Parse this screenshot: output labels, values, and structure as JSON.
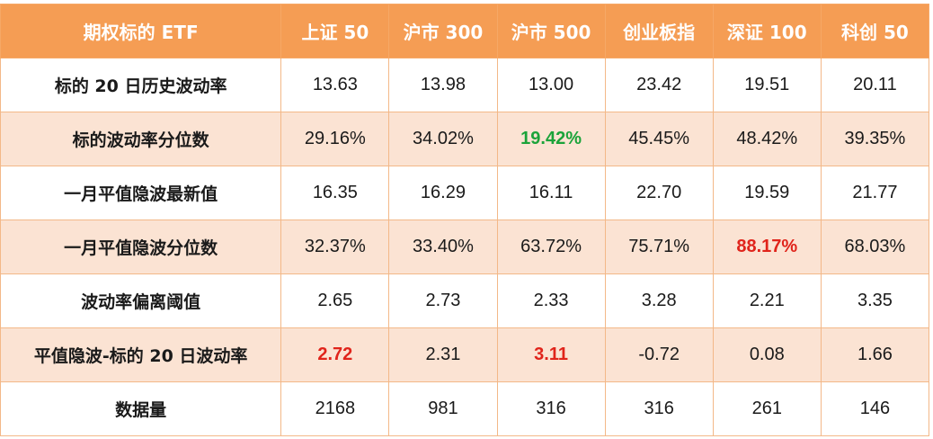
{
  "table": {
    "headers": [
      "期权标的 ETF",
      "上证 50",
      "沪市 300",
      "沪市 500",
      "创业板指",
      "深证 100",
      "科创 50"
    ],
    "rows": [
      {
        "label": "标的 20 日历史波动率",
        "values": [
          "13.63",
          "13.98",
          "13.00",
          "23.42",
          "19.51",
          "20.11"
        ],
        "highlights": [
          "",
          "",
          "",
          "",
          "",
          ""
        ]
      },
      {
        "label": "标的波动率分位数",
        "values": [
          "29.16%",
          "34.02%",
          "19.42%",
          "45.45%",
          "48.42%",
          "39.35%"
        ],
        "highlights": [
          "",
          "",
          "green",
          "",
          "",
          ""
        ]
      },
      {
        "label": "一月平值隐波最新值",
        "values": [
          "16.35",
          "16.29",
          "16.11",
          "22.70",
          "19.59",
          "21.77"
        ],
        "highlights": [
          "",
          "",
          "",
          "",
          "",
          ""
        ]
      },
      {
        "label": "一月平值隐波分位数",
        "values": [
          "32.37%",
          "33.40%",
          "63.72%",
          "75.71%",
          "88.17%",
          "68.03%"
        ],
        "highlights": [
          "",
          "",
          "",
          "",
          "red",
          ""
        ]
      },
      {
        "label": "波动率偏离阈值",
        "values": [
          "2.65",
          "2.73",
          "2.33",
          "3.28",
          "2.21",
          "3.35"
        ],
        "highlights": [
          "",
          "",
          "",
          "",
          "",
          ""
        ]
      },
      {
        "label": "平值隐波-标的 20 日波动率",
        "values": [
          "2.72",
          "2.31",
          "3.11",
          "-0.72",
          "0.08",
          "1.66"
        ],
        "highlights": [
          "red",
          "",
          "red",
          "",
          "",
          ""
        ]
      },
      {
        "label": "数据量",
        "values": [
          "2168",
          "981",
          "316",
          "316",
          "261",
          "146"
        ],
        "highlights": [
          "",
          "",
          "",
          "",
          "",
          ""
        ]
      }
    ]
  },
  "colors": {
    "header_bg": "#f59d54",
    "header_text": "#ffffff",
    "row_alt_bg": "#fbe3d3",
    "highlight_green": "#1ba33a",
    "highlight_red": "#e0241b"
  }
}
